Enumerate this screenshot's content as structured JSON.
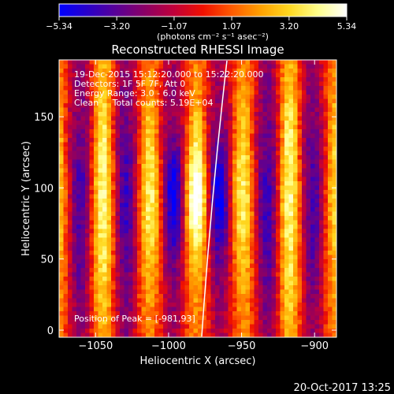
{
  "colorbar": {
    "tick_labels": [
      "−5.34",
      "−3.20",
      "−1.07",
      "1.07",
      "3.20",
      "5.34"
    ],
    "tick_values": [
      -5.34,
      -3.2,
      -1.07,
      1.07,
      3.2,
      5.34
    ],
    "unit_label": "(photons cm⁻² s⁻¹ asec⁻²)",
    "colormap": [
      "#0000ff",
      "#2a00c8",
      "#5a0096",
      "#8c0064",
      "#c0003a",
      "#f01000",
      "#ff5a00",
      "#ffa000",
      "#ffd820",
      "#ffff8c",
      "#ffffff"
    ]
  },
  "chart_data": {
    "type": "heatmap",
    "title": "Reconstructed RHESSI Image",
    "xlabel": "Heliocentric X (arcsec)",
    "ylabel": "Heliocentric Y (arcsec)",
    "xlim": [
      -1075,
      -885
    ],
    "ylim": [
      -5,
      190
    ],
    "xticks": [
      -1050,
      -1000,
      -950,
      -900
    ],
    "xtick_labels": [
      "−1050",
      "−1000",
      "−950",
      "−900"
    ],
    "yticks": [
      0,
      50,
      100,
      150
    ],
    "ytick_labels": [
      "0",
      "50",
      "100",
      "150"
    ],
    "peak": [
      -981,
      93
    ],
    "value_range": [
      -5.34,
      5.34
    ],
    "annotations": [
      "19-Dec-2015 15:12:20.000 to 15:22:20.000",
      "Detectors: 1F 5F 7F, Att 0",
      "Energy Range: 3.0 - 6.0 keV",
      "Clean     Total counts: 5.19E+04"
    ],
    "peak_label": "Position of Peak = [-981,93]"
  },
  "timestamp": "20-Oct-2017 13:25"
}
